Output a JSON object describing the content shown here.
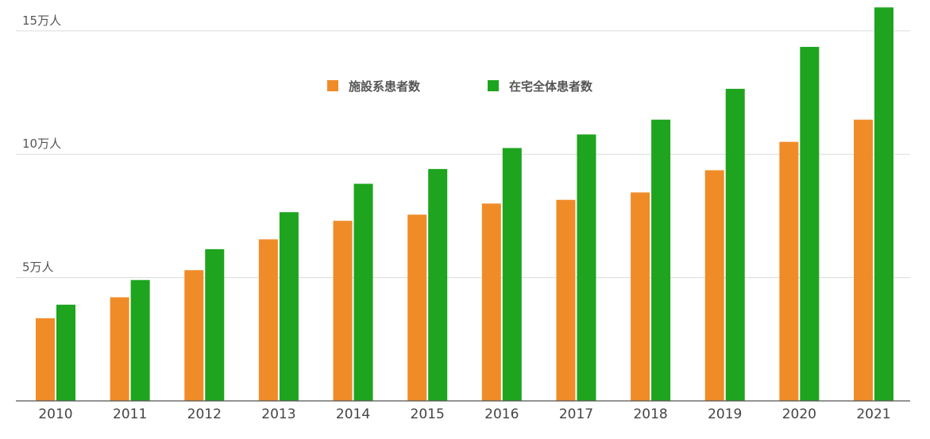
{
  "chart_data": {
    "type": "bar",
    "title": "",
    "xlabel": "",
    "ylabel": "",
    "categories": [
      "2010",
      "2011",
      "2012",
      "2013",
      "2014",
      "2015",
      "2016",
      "2017",
      "2018",
      "2019",
      "2020",
      "2021"
    ],
    "series": [
      {
        "name": "施設系患者数",
        "color": "#F08C28",
        "values": [
          33500,
          42000,
          53000,
          65500,
          73000,
          75500,
          80000,
          81500,
          84500,
          93500,
          105000,
          114000
        ]
      },
      {
        "name": "在宅全体患者数",
        "color": "#1EA41E",
        "values": [
          39000,
          49000,
          61500,
          76500,
          88000,
          94000,
          102500,
          108000,
          114000,
          126500,
          143500,
          159500
        ]
      }
    ],
    "ylim": [
      0,
      162500
    ],
    "yticks": [
      {
        "value": 50000,
        "label": "5万人"
      },
      {
        "value": 100000,
        "label": "10万人"
      },
      {
        "value": 150000,
        "label": "15万人"
      }
    ],
    "grid": true,
    "legend_position": "top-center"
  }
}
